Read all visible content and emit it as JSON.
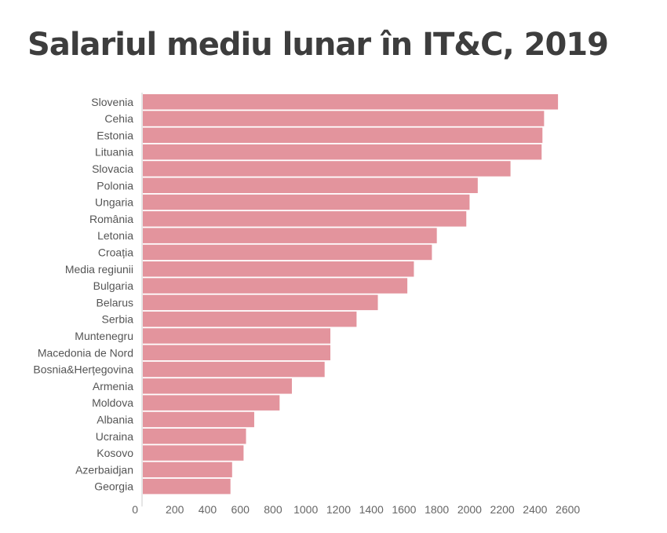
{
  "colors": {
    "bar": "#e3949d",
    "axis": "#cccccc",
    "title": "#3d3d3d"
  },
  "chart_data": {
    "type": "bar",
    "orientation": "horizontal",
    "title": "Salariul mediu lunar în IT&C, 2019",
    "xlabel": "",
    "ylabel": "",
    "xlim": [
      0,
      2700
    ],
    "xticks": [
      0,
      200,
      400,
      600,
      800,
      1000,
      1200,
      1400,
      1600,
      1800,
      2000,
      2200,
      2400,
      2600
    ],
    "grid": false,
    "categories": [
      "Slovenia",
      "Cehia",
      "Estonia",
      "Lituania",
      "Slovacia",
      "Polonia",
      "Ungaria",
      "România",
      "Letonia",
      "Croația",
      "Media regiunii",
      "Bulgaria",
      "Belarus",
      "Serbia",
      "Muntenegru",
      "Macedonia de Nord",
      "Bosnia&Herțegovina",
      "Armenia",
      "Moldova",
      "Albania",
      "Ucraina",
      "Kosovo",
      "Azerbaidjan",
      "Georgia"
    ],
    "values": [
      2540,
      2455,
      2445,
      2440,
      2250,
      2050,
      2000,
      1980,
      1800,
      1770,
      1660,
      1620,
      1440,
      1310,
      1150,
      1150,
      1115,
      915,
      840,
      685,
      635,
      620,
      550,
      540
    ]
  }
}
